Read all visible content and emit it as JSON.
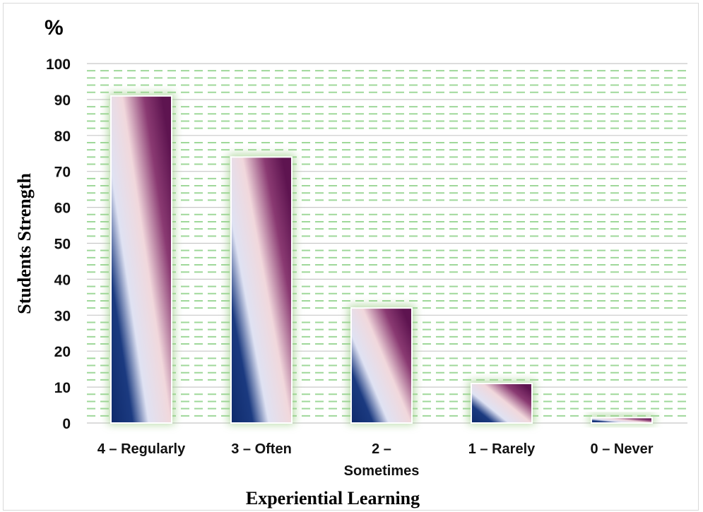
{
  "chart_data": {
    "type": "bar",
    "unit_label": "%",
    "ylabel": "Students Strength",
    "xlabel": "Experiential Learning",
    "categories": [
      "4 – Regularly",
      "3 – Often",
      "2 – Sometimes",
      "1 – Rarely",
      "0 – Never"
    ],
    "category_lines": [
      [
        "4 – Regularly"
      ],
      [
        "3 – Often"
      ],
      [
        "2 –",
        "Sometimes"
      ],
      [
        "1 – Rarely"
      ],
      [
        "0 – Never"
      ]
    ],
    "values": [
      91,
      74,
      32,
      11,
      1.5
    ],
    "ylim": [
      0,
      100
    ],
    "yticks": [
      0,
      10,
      20,
      30,
      40,
      50,
      60,
      70,
      80,
      90,
      100
    ],
    "grid": true,
    "legend": "none"
  },
  "colors": {
    "bar_dark": "#0f2a6b",
    "bar_light": "#dfe2f3",
    "bar_mid": "#f1d8dc",
    "bar_purple": "#6a1b5a",
    "grid_major": "#c8c8c8",
    "grid_minor": "#9fd89a",
    "glow": "#9ecf8a"
  }
}
